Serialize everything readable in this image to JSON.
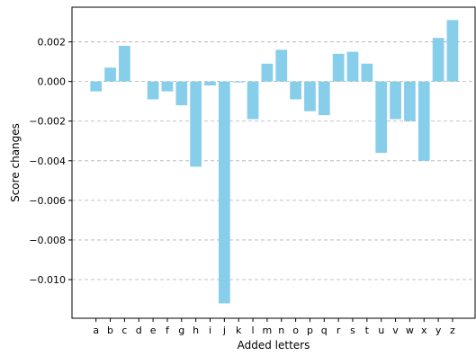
{
  "chart_data": {
    "type": "bar",
    "xlabel": "Added letters",
    "ylabel": "Score changes",
    "categories": [
      "a",
      "b",
      "c",
      "d",
      "e",
      "f",
      "g",
      "h",
      "i",
      "j",
      "k",
      "l",
      "m",
      "n",
      "o",
      "p",
      "q",
      "r",
      "s",
      "t",
      "u",
      "v",
      "w",
      "x",
      "y",
      "z"
    ],
    "values": [
      -0.0005,
      0.0007,
      0.0018,
      0.0,
      -0.0009,
      -0.0005,
      -0.0012,
      -0.0043,
      -0.0002,
      -0.0112,
      -5e-05,
      -0.0019,
      0.0009,
      0.0016,
      -0.0009,
      -0.0015,
      -0.0017,
      0.0014,
      0.0015,
      0.0009,
      -0.0036,
      -0.0019,
      -0.002,
      -0.004,
      0.0022,
      0.0031
    ],
    "yticks": [
      0.002,
      0.0,
      -0.002,
      -0.004,
      -0.006,
      -0.008,
      -0.01
    ],
    "ytick_labels": [
      "0.002",
      "0.000",
      "−0.002",
      "−0.004",
      "−0.006",
      "−0.008",
      "−0.010"
    ],
    "ylim": [
      -0.01195,
      0.00375
    ],
    "grid": "y-dashed",
    "bar_color": "#87ceeb"
  }
}
